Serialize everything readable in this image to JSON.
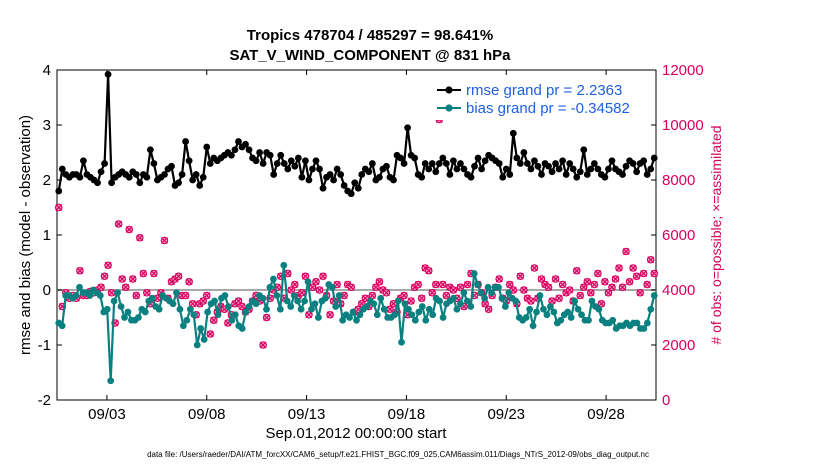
{
  "chart_data": {
    "type": "line",
    "title_line1": "Tropics 478704 / 485297 = 98.641%",
    "title_line2": "SAT_V_WIND_COMPONENT @ 831 hPa",
    "xlabel": "Sep.01,2012 00:00:00 start",
    "ylabel_left": "rmse and bias (model - observation)",
    "ylabel_right": "# of obs: o=possible; ×=assimilated",
    "ylim_left": [
      -2,
      4
    ],
    "ylim_right": [
      0,
      12000
    ],
    "yticks_left": [
      "-2",
      "-1",
      "0",
      "1",
      "2",
      "3",
      "4"
    ],
    "yticks_right": [
      "0",
      "2000",
      "4000",
      "6000",
      "8000",
      "10000",
      "12000"
    ],
    "xlim": [
      1.0,
      31.0
    ],
    "xticks": [
      {
        "day": 3.5,
        "label": "09/03"
      },
      {
        "day": 8.5,
        "label": "09/08"
      },
      {
        "day": 13.5,
        "label": "09/13"
      },
      {
        "day": 18.5,
        "label": "09/18"
      },
      {
        "day": 23.5,
        "label": "09/23"
      },
      {
        "day": 28.5,
        "label": "09/28"
      }
    ],
    "series": [
      {
        "name": "rmse grand pr = 2.2363",
        "color": "#000000",
        "axis": "left",
        "values": [
          1.8,
          2.2,
          2.1,
          2.05,
          2.1,
          2.1,
          2.05,
          2.35,
          2.1,
          2.05,
          2.0,
          1.95,
          2.15,
          2.3,
          3.92,
          1.95,
          2.05,
          2.1,
          2.15,
          2.1,
          2.05,
          2.15,
          2.1,
          1.95,
          2.1,
          2.05,
          2.55,
          2.3,
          2.0,
          2.05,
          2.1,
          2.2,
          2.25,
          1.9,
          1.95,
          2.1,
          2.7,
          2.35,
          2.0,
          2.1,
          1.9,
          2.05,
          2.6,
          2.3,
          2.4,
          2.35,
          2.4,
          2.45,
          2.5,
          2.45,
          2.55,
          2.7,
          2.6,
          2.65,
          2.55,
          2.4,
          2.35,
          2.5,
          2.3,
          2.5,
          2.45,
          2.1,
          2.3,
          2.45,
          2.3,
          2.2,
          2.35,
          2.25,
          2.4,
          2.05,
          2.35,
          2.0,
          2.2,
          2.35,
          2.2,
          1.85,
          2.05,
          2.1,
          2.0,
          2.2,
          2.1,
          1.9,
          1.8,
          1.75,
          1.95,
          1.85,
          2.1,
          2.2,
          2.15,
          2.3,
          2.0,
          2.05,
          2.2,
          2.25,
          2.05,
          2.0,
          2.45,
          2.4,
          2.3,
          2.95,
          2.45,
          2.4,
          2.1,
          2.05,
          2.3,
          2.2,
          2.3,
          2.15,
          2.3,
          2.4,
          2.3,
          2.1,
          2.35,
          2.2,
          2.3,
          2.2,
          2.1,
          2.05,
          2.25,
          2.4,
          2.2,
          2.35,
          2.45,
          2.4,
          2.35,
          2.3,
          2.05,
          2.2,
          2.1,
          2.85,
          2.4,
          2.3,
          2.5,
          2.3,
          2.2,
          2.35,
          2.25,
          2.1,
          2.3,
          2.25,
          2.15,
          2.3,
          2.2,
          2.35,
          2.1,
          2.3,
          2.2,
          2.05,
          2.15,
          2.55,
          2.1,
          2.2,
          2.3,
          2.2,
          2.1,
          2.05,
          2.2,
          2.35,
          2.2,
          2.15,
          2.1,
          2.25,
          2.35,
          2.3,
          2.15,
          2.3,
          2.35,
          2.1,
          2.2,
          2.4
        ]
      },
      {
        "name": "bias grand pr = -0.34582",
        "color": "#0b8080",
        "axis": "left",
        "values": [
          -0.6,
          -0.65,
          -0.1,
          -0.1,
          -0.15,
          -0.1,
          0.05,
          -0.05,
          -0.05,
          -0.1,
          0.0,
          -0.05,
          -0.1,
          -0.4,
          -0.35,
          -1.65,
          -0.2,
          -0.05,
          -0.3,
          -0.5,
          -0.4,
          -0.55,
          -0.55,
          -0.5,
          -0.35,
          -0.4,
          -0.2,
          -0.15,
          -0.3,
          -0.35,
          -0.1,
          -0.15,
          -0.2,
          -0.25,
          -0.05,
          -0.35,
          -0.65,
          -0.55,
          -0.35,
          -0.45,
          -1.0,
          -0.7,
          -0.9,
          -0.4,
          -0.25,
          -0.2,
          -0.45,
          -0.15,
          -0.1,
          -0.3,
          -0.55,
          -0.45,
          -0.65,
          -0.7,
          -0.4,
          -0.3,
          -0.2,
          -0.25,
          -0.1,
          -0.15,
          -0.35,
          0.05,
          0.2,
          -0.1,
          -0.35,
          0.45,
          -0.2,
          -0.3,
          -0.1,
          -0.2,
          -0.35,
          -0.2,
          0.15,
          -0.35,
          -0.25,
          -0.5,
          -0.2,
          -0.15,
          0.1,
          0.05,
          -0.3,
          -0.1,
          -0.55,
          -0.45,
          -0.5,
          -0.4,
          -0.55,
          -0.45,
          -0.35,
          -0.3,
          -0.2,
          -0.25,
          -0.45,
          -0.15,
          -0.35,
          -0.5,
          -0.5,
          -0.45,
          -0.2,
          -0.95,
          -0.25,
          -0.35,
          -0.45,
          -0.55,
          -0.4,
          -0.3,
          -0.55,
          -0.35,
          -0.45,
          -0.15,
          -0.2,
          -0.5,
          -0.25,
          -0.2,
          -0.15,
          -0.35,
          -0.25,
          -0.05,
          -0.2,
          -0.3,
          0.3,
          0.1,
          -0.05,
          -0.15,
          0.05,
          -0.05,
          0.05,
          0.05,
          -0.15,
          -0.3,
          -0.05,
          -0.15,
          -0.2,
          -0.5,
          -0.55,
          -0.5,
          -0.35,
          -0.65,
          -0.4,
          -0.1,
          -0.35,
          -0.45,
          -0.3,
          -0.4,
          -0.6,
          -0.55,
          -0.45,
          -0.4,
          -0.5,
          -0.2,
          -0.35,
          -0.45,
          -0.55,
          -0.55,
          -0.2,
          -0.3,
          -0.35,
          -0.55,
          -0.6,
          -0.6,
          -0.55,
          -0.7,
          -0.65,
          -0.65,
          -0.6,
          -0.65,
          -0.6,
          -0.6,
          -0.7,
          -0.7,
          -0.6,
          -0.35,
          -0.1
        ]
      },
      {
        "name": "# of obs possible / assimilated",
        "color": "#d6005f",
        "axis": "right",
        "values": [
          7000,
          3400,
          3900,
          3700,
          3800,
          3700,
          4700,
          3800,
          3800,
          3950,
          3900,
          4000,
          4100,
          4500,
          4900,
          3900,
          2800,
          6400,
          4400,
          4100,
          6200,
          4400,
          3800,
          5900,
          4600,
          3900,
          3500,
          4600,
          3700,
          3900,
          5800,
          3700,
          4300,
          4400,
          4500,
          3800,
          3800,
          4300,
          3500,
          3100,
          3500,
          3600,
          3800,
          2400,
          2900,
          3200,
          3400,
          3300,
          2800,
          3100,
          3500,
          3600,
          3400,
          3200,
          3300,
          3600,
          3800,
          3600,
          2000,
          3000,
          3700,
          4000,
          4100,
          4500,
          3700,
          4600,
          4000,
          4200,
          3800,
          3900,
          4500,
          3100,
          4100,
          4300,
          4000,
          4500,
          3800,
          3100,
          3600,
          4200,
          3500,
          3800,
          4200,
          4100,
          3200,
          3300,
          3500,
          3700,
          3400,
          3800,
          4100,
          4300,
          4000,
          3900,
          3300,
          3500,
          3200,
          3700,
          3800,
          3100,
          3600,
          4100,
          4200,
          3700,
          4800,
          4700,
          3900,
          4200,
          10200,
          4200,
          3800,
          4100,
          4000,
          3700,
          4100,
          3400,
          4200,
          4600,
          3800,
          4200,
          3900,
          3500,
          3300,
          3800,
          4100,
          4400,
          3700,
          3600,
          4200,
          4000,
          3500,
          4500,
          4000,
          3700,
          3600,
          4800,
          3700,
          4400,
          4200,
          4100,
          3600,
          4400,
          3700,
          4200,
          3900,
          4000,
          3600,
          4700,
          3800,
          4100,
          4300,
          3900,
          4200,
          4600,
          3500,
          4300,
          3900,
          4100,
          4400,
          4800,
          4100,
          5400,
          4300,
          4800,
          4500,
          3900,
          4600,
          4200,
          5100,
          4600
        ]
      }
    ],
    "legend": [
      {
        "label": "rmse grand pr = 2.2363",
        "color": "#000000"
      },
      {
        "label": "bias grand pr = -0.34582",
        "color": "#0b8080"
      }
    ],
    "legend_position": "top-right",
    "footnote": "data file: /Users/raeder/DAI/ATM_forcXX/CAM6_setup/f.e21.FHIST_BGC.f09_025.CAM6assim.011/Diags_NTrS_2012-09/obs_diag_output.nc",
    "colors": {
      "rmse": "#000000",
      "bias": "#0b8080",
      "obs_axis": "#d6005f",
      "obs_marker_fill": "#f7a6c6",
      "zero_line": "#a8a8a8"
    }
  }
}
